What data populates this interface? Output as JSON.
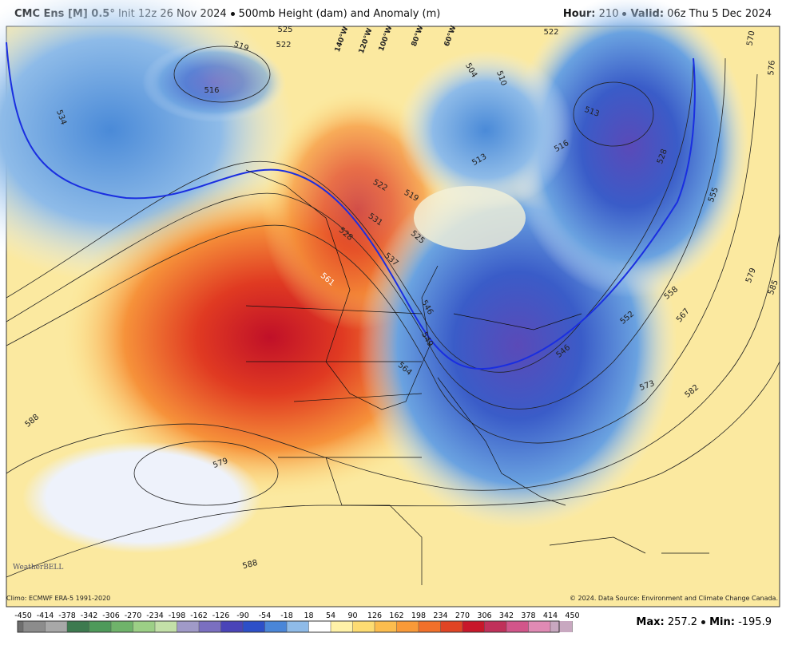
{
  "header": {
    "title": "CMC Ens [M] 0.5°",
    "init": "Init 12z 26 Nov 2024",
    "product": "500mb Height (dam) and Anomaly (m)",
    "hour_label": "Hour:",
    "hour": "210",
    "valid_label": "Valid:",
    "valid": "06z Thu 5 Dec 2024"
  },
  "map": {
    "contour_labels": [
      "519",
      "522",
      "525",
      "516",
      "534",
      "504",
      "510",
      "513",
      "516",
      "513",
      "522",
      "519",
      "528",
      "555",
      "570",
      "576",
      "531",
      "528",
      "525",
      "537",
      "561",
      "579",
      "585",
      "558",
      "552",
      "567",
      "546",
      "549",
      "546",
      "564",
      "573",
      "582",
      "588",
      "579",
      "588",
      "522"
    ],
    "longitude_labels": [
      "140°W",
      "120°W",
      "100°W",
      "80°W",
      "60°W"
    ]
  },
  "footer": {
    "climo": "Climo: ECMWF ERA-5 1991-2020",
    "copyright": "© 2024. Data Source: Environment and Climate Change Canada.",
    "logo": "WeatherBELL"
  },
  "colorbar": {
    "ticks": [
      -450,
      -414,
      -378,
      -342,
      -306,
      -270,
      -234,
      -198,
      -162,
      -126,
      -90,
      -54,
      -18,
      18,
      54,
      90,
      126,
      162,
      198,
      234,
      270,
      306,
      342,
      378,
      414,
      450
    ],
    "colors": [
      "#6e6e6e",
      "#8c8c8c",
      "#a8a8a8",
      "#3d7a4f",
      "#4e9a5a",
      "#6fb36a",
      "#9ccf86",
      "#c3e0a8",
      "#a09ac8",
      "#7a6fc0",
      "#4a44b8",
      "#2d4fc8",
      "#4a86d8",
      "#8fbbe8",
      "#ffffff",
      "#fff2a8",
      "#fddc72",
      "#fcbd4e",
      "#f99a38",
      "#f2702a",
      "#e04424",
      "#c8172a",
      "#c0305a",
      "#d2558a",
      "#e08ab4",
      "#c8a8c0",
      "#b4a0b0"
    ]
  },
  "stats": {
    "max_label": "Max:",
    "max": 257.2,
    "min_label": "Min:",
    "min": -195.9
  }
}
